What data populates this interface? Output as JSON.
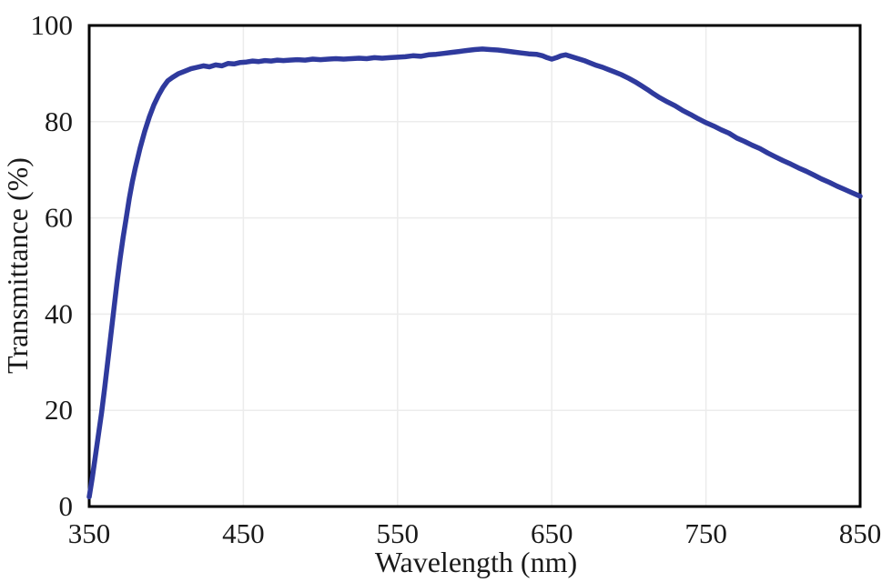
{
  "page": {
    "background": "#ffffff"
  },
  "chart_data": {
    "type": "line",
    "title": "",
    "xlabel": "Wavelength (nm)",
    "ylabel": "Transmittance (%)",
    "xlim": [
      350,
      850
    ],
    "ylim": [
      0,
      100
    ],
    "x_ticks": [
      350,
      450,
      550,
      650,
      750,
      850
    ],
    "y_ticks": [
      0,
      20,
      40,
      60,
      80,
      100
    ],
    "grid": true,
    "legend_position": "none",
    "axis_color": "#000000",
    "grid_color": "#ececec",
    "text_color": "#1a1a1a",
    "series": [
      {
        "name": "Transmittance",
        "color": "#2f3a9d",
        "line_width": 5.5,
        "points": [
          [
            350,
            2
          ],
          [
            352,
            6
          ],
          [
            354,
            10.5
          ],
          [
            356,
            15
          ],
          [
            358,
            19.5
          ],
          [
            360,
            24.5
          ],
          [
            362,
            30
          ],
          [
            364,
            35.5
          ],
          [
            366,
            41
          ],
          [
            368,
            46.5
          ],
          [
            370,
            51.5
          ],
          [
            372,
            56
          ],
          [
            374,
            60
          ],
          [
            376,
            64
          ],
          [
            378,
            67.5
          ],
          [
            380,
            70.5
          ],
          [
            383,
            74.5
          ],
          [
            386,
            78
          ],
          [
            389,
            81
          ],
          [
            392,
            83.5
          ],
          [
            395,
            85.5
          ],
          [
            398,
            87.2
          ],
          [
            401,
            88.5
          ],
          [
            404,
            89.2
          ],
          [
            408,
            90
          ],
          [
            412,
            90.5
          ],
          [
            416,
            91
          ],
          [
            420,
            91.3
          ],
          [
            424,
            91.6
          ],
          [
            428,
            91.4
          ],
          [
            432,
            91.8
          ],
          [
            436,
            91.6
          ],
          [
            440,
            92.1
          ],
          [
            444,
            92
          ],
          [
            448,
            92.3
          ],
          [
            452,
            92.4
          ],
          [
            456,
            92.6
          ],
          [
            460,
            92.5
          ],
          [
            464,
            92.7
          ],
          [
            468,
            92.6
          ],
          [
            472,
            92.8
          ],
          [
            476,
            92.7
          ],
          [
            480,
            92.8
          ],
          [
            485,
            92.9
          ],
          [
            490,
            92.8
          ],
          [
            495,
            93
          ],
          [
            500,
            92.9
          ],
          [
            505,
            93
          ],
          [
            510,
            93.1
          ],
          [
            515,
            93
          ],
          [
            520,
            93.1
          ],
          [
            525,
            93.2
          ],
          [
            530,
            93.1
          ],
          [
            535,
            93.3
          ],
          [
            540,
            93.2
          ],
          [
            545,
            93.3
          ],
          [
            550,
            93.4
          ],
          [
            555,
            93.5
          ],
          [
            560,
            93.7
          ],
          [
            565,
            93.6
          ],
          [
            570,
            93.9
          ],
          [
            575,
            94
          ],
          [
            580,
            94.2
          ],
          [
            585,
            94.4
          ],
          [
            590,
            94.6
          ],
          [
            595,
            94.8
          ],
          [
            600,
            95
          ],
          [
            605,
            95.1
          ],
          [
            610,
            95
          ],
          [
            615,
            94.9
          ],
          [
            620,
            94.7
          ],
          [
            625,
            94.5
          ],
          [
            630,
            94.3
          ],
          [
            635,
            94.1
          ],
          [
            640,
            94
          ],
          [
            644,
            93.7
          ],
          [
            647,
            93.3
          ],
          [
            650,
            93
          ],
          [
            653,
            93.3
          ],
          [
            656,
            93.7
          ],
          [
            659,
            93.9
          ],
          [
            663,
            93.5
          ],
          [
            667,
            93.1
          ],
          [
            671,
            92.7
          ],
          [
            675,
            92.2
          ],
          [
            679,
            91.7
          ],
          [
            683,
            91.3
          ],
          [
            687,
            90.8
          ],
          [
            691,
            90.3
          ],
          [
            695,
            89.8
          ],
          [
            700,
            89
          ],
          [
            704,
            88.3
          ],
          [
            708,
            87.5
          ],
          [
            712,
            86.7
          ],
          [
            716,
            85.8
          ],
          [
            720,
            85
          ],
          [
            725,
            84.1
          ],
          [
            730,
            83.3
          ],
          [
            735,
            82.3
          ],
          [
            740,
            81.5
          ],
          [
            745,
            80.6
          ],
          [
            750,
            79.8
          ],
          [
            755,
            79.1
          ],
          [
            760,
            78.3
          ],
          [
            765,
            77.6
          ],
          [
            770,
            76.6
          ],
          [
            775,
            75.9
          ],
          [
            780,
            75.1
          ],
          [
            785,
            74.4
          ],
          [
            790,
            73.5
          ],
          [
            795,
            72.7
          ],
          [
            800,
            71.9
          ],
          [
            805,
            71.2
          ],
          [
            810,
            70.4
          ],
          [
            815,
            69.7
          ],
          [
            820,
            68.9
          ],
          [
            825,
            68.1
          ],
          [
            830,
            67.4
          ],
          [
            835,
            66.6
          ],
          [
            840,
            65.9
          ],
          [
            845,
            65.2
          ],
          [
            850,
            64.5
          ]
        ]
      }
    ]
  }
}
